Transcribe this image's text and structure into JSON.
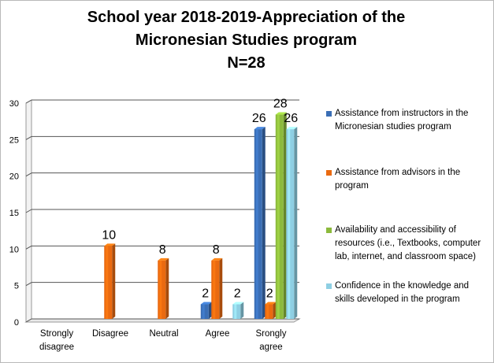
{
  "chart_data": {
    "type": "bar",
    "title_lines": [
      "School year 2018-2019-Appreciation of the",
      "Micronesian Studies program",
      "N=28"
    ],
    "categories": [
      "Strongly\ndisagree",
      "Disagree",
      "Neutral",
      "Agree",
      "Srongly\nagree"
    ],
    "series": [
      {
        "name": "Assistance from instructors in the Micronesian studies program",
        "values": [
          null,
          null,
          null,
          2,
          26
        ],
        "color": "#3a6eb5"
      },
      {
        "name": "Assistance from advisors in the program",
        "values": [
          null,
          10,
          8,
          8,
          2
        ],
        "color": "#ea6a10"
      },
      {
        "name": "Availability and accessibility of resources (i.e., Textbooks, computer lab, internet, and classroom space)",
        "values": [
          null,
          null,
          null,
          null,
          28
        ],
        "color": "#8cba3c"
      },
      {
        "name": "Confidence in the knowledge and skills developed in the program",
        "values": [
          null,
          null,
          null,
          2,
          26
        ],
        "color": "#8ecfe3"
      }
    ],
    "ylim": [
      0,
      30
    ],
    "yticks": [
      0,
      5,
      10,
      15,
      20,
      25,
      30
    ],
    "grid": true,
    "legend": "right",
    "style": "3d-bar"
  }
}
